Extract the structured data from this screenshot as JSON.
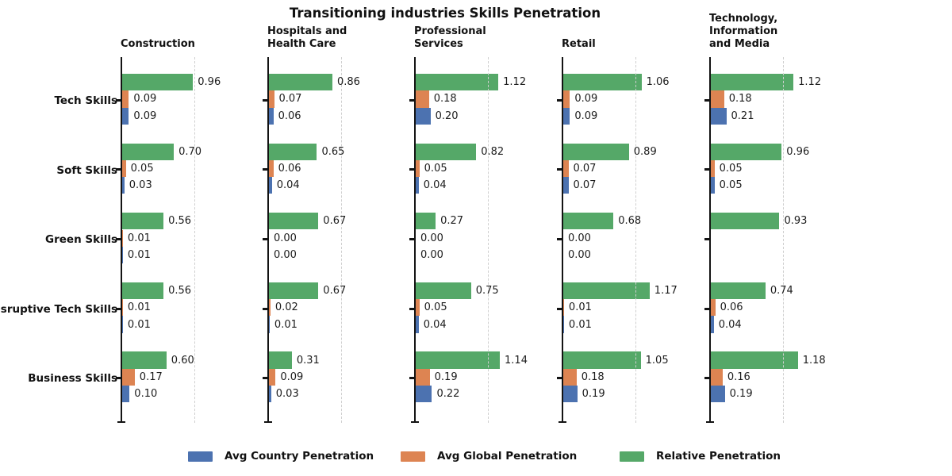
{
  "chart_data": {
    "type": "bar",
    "orientation": "horizontal",
    "title": "Transitioning industries Skills Penetration",
    "categories": [
      "Tech Skills",
      "Soft Skills",
      "Green Skills",
      "Disruptive Tech Skills",
      "Business Skills"
    ],
    "series_order_top_to_bottom": [
      "relative",
      "global",
      "country"
    ],
    "legend": [
      {
        "key": "country",
        "label": "Avg Country Penetration"
      },
      {
        "key": "global",
        "label": "Avg Global Penetration"
      },
      {
        "key": "relative",
        "label": "Relative Penetration"
      }
    ],
    "colors": {
      "country": "#4C72B0",
      "global": "#DD8452",
      "relative": "#55A868",
      "gridline": "#cfcfcf",
      "axis": "#131313"
    },
    "gridline_x": 1.0,
    "xlim": [
      0,
      1.6
    ],
    "grid": "dashed vertical line at x=1.0 per panel",
    "panels": [
      {
        "title": "Construction",
        "title_lines": [
          "Construction"
        ],
        "groups": [
          {
            "relative": 0.96,
            "global": 0.09,
            "country": 0.09
          },
          {
            "relative": 0.7,
            "global": 0.05,
            "country": 0.03
          },
          {
            "relative": 0.56,
            "global": 0.01,
            "country": 0.01
          },
          {
            "relative": 0.56,
            "global": 0.01,
            "country": 0.01
          },
          {
            "relative": 0.6,
            "global": 0.17,
            "country": 0.1
          }
        ]
      },
      {
        "title": "Hospitals and Health Care",
        "title_lines": [
          "Hospitals and",
          "Health Care"
        ],
        "groups": [
          {
            "relative": 0.86,
            "global": 0.07,
            "country": 0.06
          },
          {
            "relative": 0.65,
            "global": 0.06,
            "country": 0.04
          },
          {
            "relative": 0.67,
            "global": 0.0,
            "country": 0.0
          },
          {
            "relative": 0.67,
            "global": 0.02,
            "country": 0.01
          },
          {
            "relative": 0.31,
            "global": 0.09,
            "country": 0.03
          }
        ]
      },
      {
        "title": "Professional Services",
        "title_lines": [
          "Professional",
          "Services"
        ],
        "groups": [
          {
            "relative": 1.12,
            "global": 0.18,
            "country": 0.2
          },
          {
            "relative": 0.82,
            "global": 0.05,
            "country": 0.04
          },
          {
            "relative": 0.27,
            "global": 0.0,
            "country": 0.0
          },
          {
            "relative": 0.75,
            "global": 0.05,
            "country": 0.04
          },
          {
            "relative": 1.14,
            "global": 0.19,
            "country": 0.22
          }
        ]
      },
      {
        "title": "Retail",
        "title_lines": [
          "Retail"
        ],
        "groups": [
          {
            "relative": 1.06,
            "global": 0.09,
            "country": 0.09
          },
          {
            "relative": 0.89,
            "global": 0.07,
            "country": 0.07
          },
          {
            "relative": 0.68,
            "global": 0.0,
            "country": 0.0
          },
          {
            "relative": 1.17,
            "global": 0.01,
            "country": 0.01
          },
          {
            "relative": 1.05,
            "global": 0.18,
            "country": 0.19
          }
        ]
      },
      {
        "title": "Technology, Information and Media",
        "title_lines": [
          "Technology,",
          "Information",
          "and Media"
        ],
        "groups": [
          {
            "relative": 1.12,
            "global": 0.18,
            "country": 0.21
          },
          {
            "relative": 0.96,
            "global": 0.05,
            "country": 0.05
          },
          {
            "relative": 0.93,
            "global": null,
            "country": null
          },
          {
            "relative": 0.74,
            "global": 0.06,
            "country": 0.04
          },
          {
            "relative": 1.18,
            "global": 0.16,
            "country": 0.19
          }
        ]
      }
    ]
  }
}
